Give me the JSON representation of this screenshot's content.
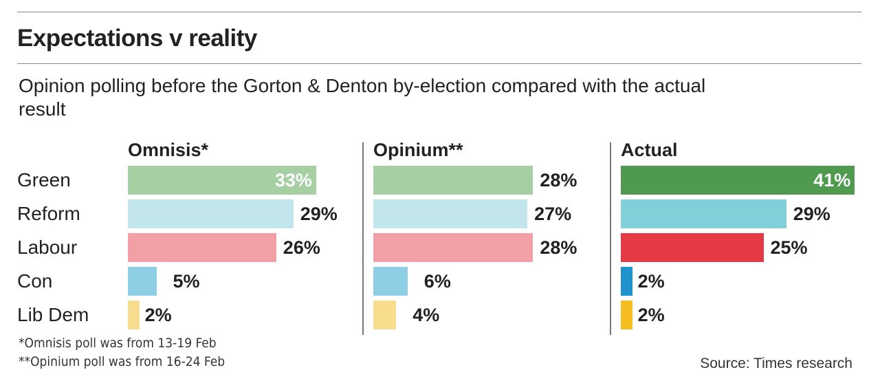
{
  "title": "Expectations v reality",
  "subtitle": "Opinion polling before the Gorton & Denton by-election compared with the actual result",
  "footnotes": [
    "*Omnisis poll was from 13-19 Feb",
    "**Opinium poll was from 16-24 Feb"
  ],
  "source": "Source: Times research",
  "chart_data": {
    "type": "bar",
    "orientation": "horizontal",
    "categories": [
      "Green",
      "Reform",
      "Labour",
      "Con",
      "Lib Dem"
    ],
    "unit": "%",
    "series": [
      {
        "name": "Omnisis*",
        "values": [
          33,
          29,
          26,
          5,
          2
        ],
        "colors": [
          "#a6cfa4",
          "#c3e6ec",
          "#f2a0a6",
          "#8ecfe6",
          "#f9dd8e"
        ],
        "labels": [
          "33%",
          "29%",
          "26%",
          "5%",
          "2%"
        ]
      },
      {
        "name": "Opinium**",
        "values": [
          28,
          27,
          28,
          6,
          4
        ],
        "colors": [
          "#a6cfa4",
          "#c3e6ec",
          "#f2a0a6",
          "#8ecfe6",
          "#f9dd8e"
        ],
        "labels": [
          "28%",
          "27%",
          "28%",
          "6%",
          "4%"
        ]
      },
      {
        "name": "Actual",
        "values": [
          41,
          29,
          25,
          2,
          2
        ],
        "colors": [
          "#4f9a4e",
          "#80cfd9",
          "#e63946",
          "#1f94cc",
          "#f5bd1f"
        ],
        "labels": [
          "41%",
          "29%",
          "25%",
          "2%",
          "2%"
        ]
      }
    ]
  }
}
